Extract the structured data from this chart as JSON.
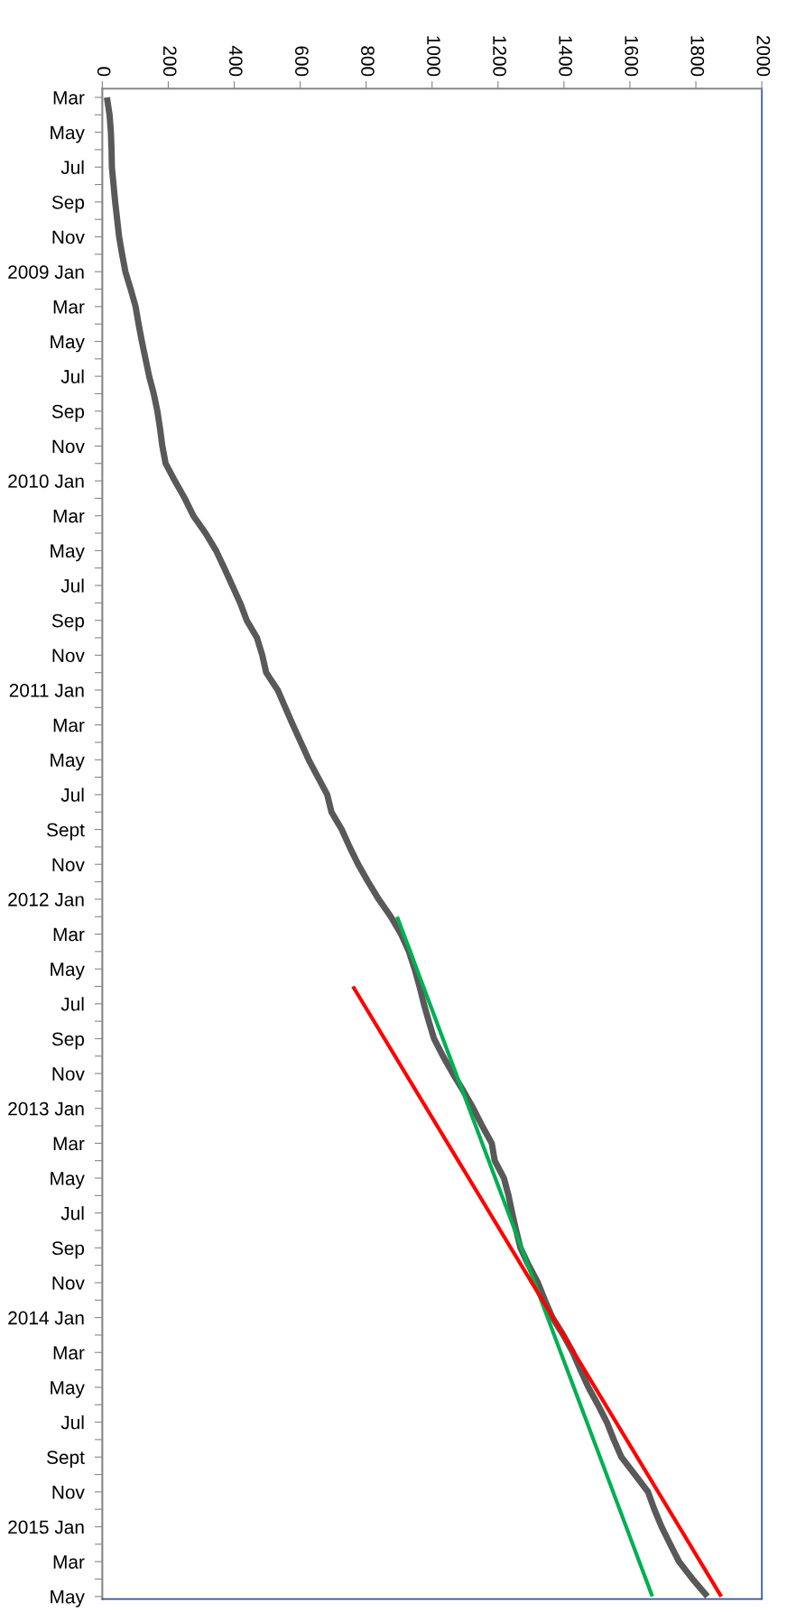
{
  "chart_data": {
    "type": "line",
    "orientation": "horizontal",
    "categories": [
      "Mar",
      null,
      "May",
      null,
      "Jul",
      null,
      "Sep",
      null,
      "Nov",
      null,
      "2009 Jan",
      null,
      "Mar",
      null,
      "May",
      null,
      "Jul",
      null,
      "Sep",
      null,
      "Nov",
      null,
      "2010 Jan",
      null,
      "Mar",
      null,
      "May",
      null,
      "Jul",
      null,
      "Sep",
      null,
      "Nov",
      null,
      "2011 Jan",
      null,
      "Mar",
      null,
      "May",
      null,
      "Jul",
      null,
      "Sept",
      null,
      "Nov",
      null,
      "2012 Jan",
      null,
      "Mar",
      null,
      "May",
      null,
      "Jul",
      null,
      "Sep",
      null,
      "Nov",
      null,
      "2013 Jan",
      null,
      "Mar",
      null,
      "May",
      null,
      "Jul",
      null,
      "Sep",
      null,
      "Nov",
      null,
      "2014 Jan",
      null,
      "Mar",
      null,
      "May",
      null,
      "Jul",
      null,
      "Sept",
      null,
      "Nov",
      null,
      "2015 Jan",
      null,
      "Mar",
      null,
      "May"
    ],
    "series": [
      {
        "color": "#595959",
        "values": [
          14,
          22,
          26,
          28,
          29,
          34,
          39,
          45,
          51,
          60,
          70,
          86,
          101,
          110,
          120,
          131,
          142,
          156,
          167,
          175,
          182,
          192,
          220,
          250,
          276,
          313,
          345,
          370,
          394,
          418,
          438,
          469,
          485,
          497,
          532,
          555,
          578,
          602,
          626,
          654,
          682,
          695,
          726,
          750,
          776,
          806,
          838,
          875,
          906,
          930,
          947,
          962,
          975,
          990,
          1006,
          1033,
          1063,
          1095,
          1125,
          1152,
          1181,
          1190,
          1218,
          1232,
          1243,
          1255,
          1268,
          1293,
          1321,
          1342,
          1365,
          1398,
          1427,
          1450,
          1474,
          1503,
          1530,
          1551,
          1574,
          1615,
          1655,
          1674,
          1696,
          1722,
          1749,
          1790,
          1835
        ]
      },
      {
        "color": "#00b050",
        "values": [
          null,
          null,
          null,
          null,
          null,
          null,
          null,
          null,
          null,
          null,
          null,
          null,
          null,
          null,
          null,
          null,
          null,
          null,
          null,
          null,
          null,
          null,
          null,
          null,
          null,
          null,
          null,
          null,
          null,
          null,
          null,
          null,
          null,
          null,
          null,
          null,
          null,
          null,
          null,
          null,
          null,
          null,
          null,
          null,
          null,
          null,
          null,
          894,
          null,
          null,
          null,
          null,
          null,
          null,
          null,
          null,
          null,
          null,
          null,
          null,
          null,
          null,
          null,
          null,
          null,
          null,
          null,
          null,
          null,
          null,
          null,
          null,
          null,
          null,
          null,
          null,
          null,
          null,
          null,
          null,
          null,
          null,
          null,
          null,
          null,
          null,
          1668
        ]
      },
      {
        "color": "#ff0000",
        "values": [
          null,
          null,
          null,
          null,
          null,
          null,
          null,
          null,
          null,
          null,
          null,
          null,
          null,
          null,
          null,
          null,
          null,
          null,
          null,
          null,
          null,
          null,
          null,
          null,
          null,
          null,
          null,
          null,
          null,
          null,
          null,
          null,
          null,
          null,
          null,
          null,
          null,
          null,
          null,
          null,
          null,
          null,
          null,
          null,
          null,
          null,
          null,
          null,
          null,
          null,
          null,
          760,
          null,
          null,
          null,
          null,
          null,
          null,
          null,
          null,
          null,
          null,
          null,
          null,
          null,
          null,
          null,
          null,
          null,
          null,
          null,
          null,
          null,
          null,
          null,
          null,
          null,
          null,
          null,
          null,
          null,
          null,
          null,
          null,
          null,
          null,
          1877
        ]
      }
    ],
    "xlim": [
      0,
      2000
    ],
    "xticks": [
      0,
      200,
      400,
      600,
      800,
      1000,
      1200,
      1400,
      1600,
      1800,
      2000
    ]
  }
}
